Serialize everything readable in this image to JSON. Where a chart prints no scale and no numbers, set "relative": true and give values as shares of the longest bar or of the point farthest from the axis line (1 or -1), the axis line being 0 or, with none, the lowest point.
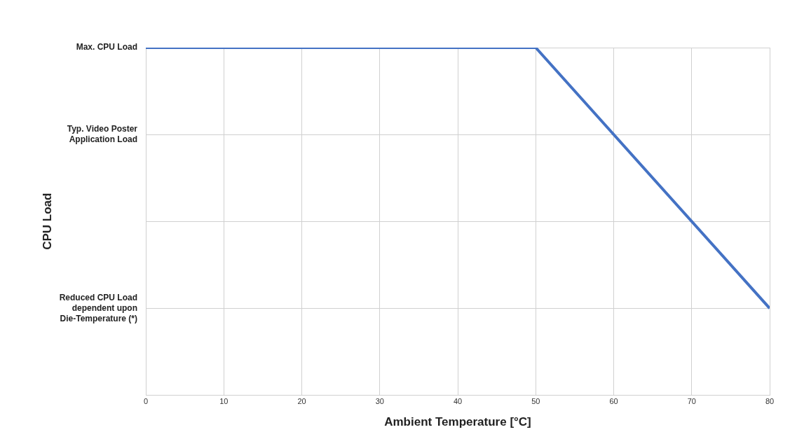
{
  "chart_data": {
    "type": "line",
    "relative": true,
    "xlabel": "Ambient Temperature [°C]",
    "series": [
      {
        "color": "#4472c4",
        "x": [
          0,
          50,
          80
        ],
        "values": [
          1,
          1,
          0.25
        ]
      }
    ],
    "xlim": [
      0,
      80
    ],
    "xticks": [
      0,
      10,
      20,
      30,
      40,
      50,
      60,
      70,
      80
    ],
    "annotations": [
      "CPU Load",
      "Max. CPU Load",
      "Typ. Video Poster Application Load",
      "Reduced CPU Load dependent upon Die-Temperature (*)"
    ],
    "grid": true,
    "legend": false,
    "marker": "none",
    "line_style": "solid"
  }
}
